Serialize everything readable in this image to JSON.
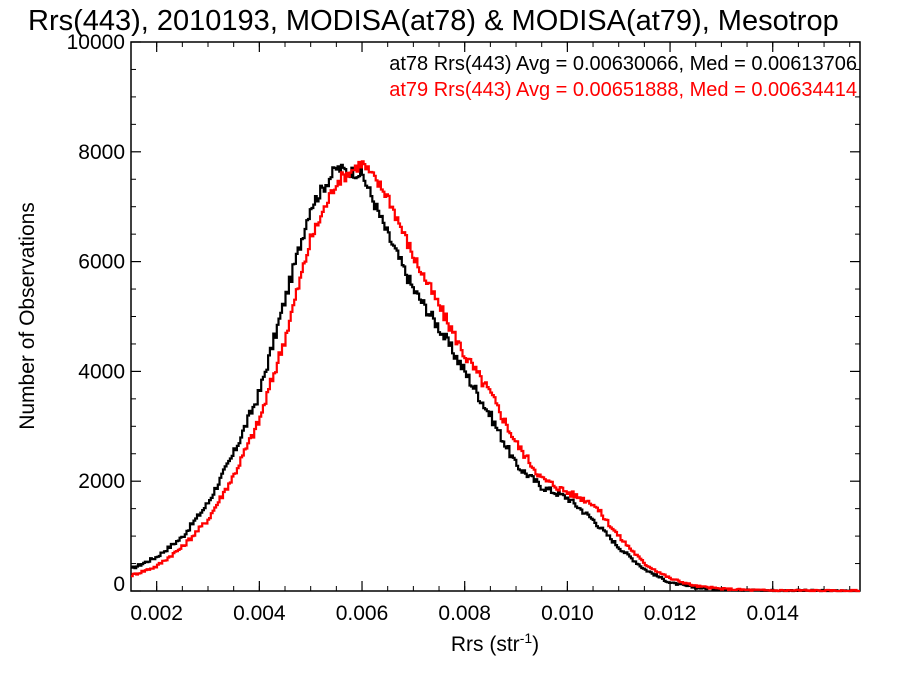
{
  "chart_data": {
    "type": "line",
    "title": "Rrs(443), 2010193, MODISA(at78) & MODISA(at79), Mesotrop",
    "xlabel": "Rrs (str",
    "xlabel_sup": "-1",
    "xlabel_close": ")",
    "ylabel": "Number of Observations",
    "xlim": [
      0.0015,
      0.0157
    ],
    "ylim": [
      0,
      10000
    ],
    "x_ticks": [
      "0.002",
      "0.004",
      "0.006",
      "0.008",
      "0.010",
      "0.012",
      "0.014"
    ],
    "y_ticks": [
      "0",
      "2000",
      "4000",
      "6000",
      "8000",
      "10000"
    ],
    "grid": false,
    "legend_position": "top-right",
    "legend": [
      {
        "text": "at78 Rrs(443) Avg = 0.00630066, Med = 0.00613706",
        "color": "#000000"
      },
      {
        "text": "at79 Rrs(443) Avg = 0.00651888, Med = 0.00634414",
        "color": "#ff0000"
      }
    ],
    "x": [
      0.0015,
      0.002,
      0.0025,
      0.003,
      0.0035,
      0.004,
      0.0045,
      0.005,
      0.0055,
      0.006,
      0.0065,
      0.007,
      0.0075,
      0.008,
      0.0085,
      0.009,
      0.0095,
      0.01,
      0.0105,
      0.011,
      0.0115,
      0.012,
      0.0125,
      0.013,
      0.0135,
      0.014,
      0.0145,
      0.015,
      0.0155
    ],
    "series": [
      {
        "name": "at78",
        "color": "#000000",
        "values": [
          400,
          620,
          980,
          1600,
          2500,
          3600,
          5300,
          7000,
          7700,
          7600,
          6500,
          5500,
          4800,
          4000,
          3200,
          2300,
          1900,
          1700,
          1300,
          800,
          400,
          150,
          60,
          30,
          20,
          10,
          10,
          5,
          5
        ]
      },
      {
        "name": "at79",
        "color": "#ff0000",
        "values": [
          280,
          450,
          800,
          1300,
          2100,
          3100,
          4600,
          6400,
          7450,
          7800,
          7200,
          6100,
          5200,
          4300,
          3600,
          2700,
          2050,
          1800,
          1600,
          1000,
          500,
          230,
          90,
          40,
          20,
          10,
          10,
          5,
          5
        ]
      }
    ]
  }
}
